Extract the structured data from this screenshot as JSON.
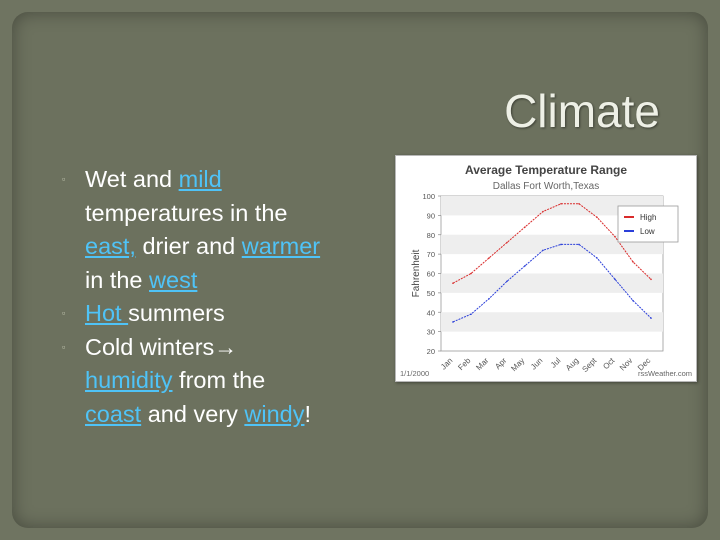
{
  "slide": {
    "title": "Climate",
    "bullets": [
      {
        "segments": [
          {
            "text": "Wet and ",
            "link": false
          },
          {
            "text": "mild",
            "link": true
          },
          {
            "text": " temperatures in the ",
            "link": false
          },
          {
            "text": "east,",
            "link": true
          },
          {
            "text": " drier and ",
            "link": false
          },
          {
            "text": "warmer",
            "link": true
          },
          {
            "text": " in the ",
            "link": false
          },
          {
            "text": "west",
            "link": true
          }
        ]
      },
      {
        "segments": [
          {
            "text": "Hot ",
            "link": true
          },
          {
            "text": "summers",
            "link": false
          }
        ]
      },
      {
        "segments": [
          {
            "text": "Cold winters",
            "link": false
          },
          {
            "text": "→",
            "link": false,
            "arrow": true
          },
          {
            "text": " ",
            "link": false
          },
          {
            "text": "humidity",
            "link": true
          },
          {
            "text": " from the ",
            "link": false
          },
          {
            "text": "coast",
            "link": true
          },
          {
            "text": " and very ",
            "link": false
          },
          {
            "text": "windy",
            "link": true
          },
          {
            "text": "!",
            "link": false
          }
        ]
      }
    ]
  },
  "chart_data": {
    "type": "line",
    "title": "Average Temperature Range",
    "subtitle": "Dallas Fort Worth,Texas",
    "ylabel": "Fahrenheit",
    "xlabel": "",
    "ylim": [
      20,
      100
    ],
    "yticks": [
      "100",
      "90",
      "80",
      "70",
      "60",
      "50",
      "40",
      "30",
      "20"
    ],
    "categories": [
      "Jan",
      "Feb",
      "Mar",
      "Apr",
      "May",
      "Jun",
      "Jul",
      "Aug",
      "Sept",
      "Oct",
      "Nov",
      "Dec"
    ],
    "series": [
      {
        "name": "High",
        "color": "#d92b2b",
        "values": [
          55,
          60,
          68,
          76,
          84,
          92,
          96,
          96,
          89,
          79,
          66,
          57
        ]
      },
      {
        "name": "Low",
        "color": "#2b3fd9",
        "values": [
          35,
          39,
          47,
          56,
          64,
          72,
          75,
          75,
          68,
          57,
          46,
          37
        ]
      }
    ],
    "legend_position": "top-right",
    "grid": "horizontal bands",
    "footer_left": "1/1/2000",
    "footer_right": "rssWeather.com"
  },
  "colors": {
    "background": "#6f7461",
    "link": "#4fc3f7",
    "text": "#ffffff"
  }
}
